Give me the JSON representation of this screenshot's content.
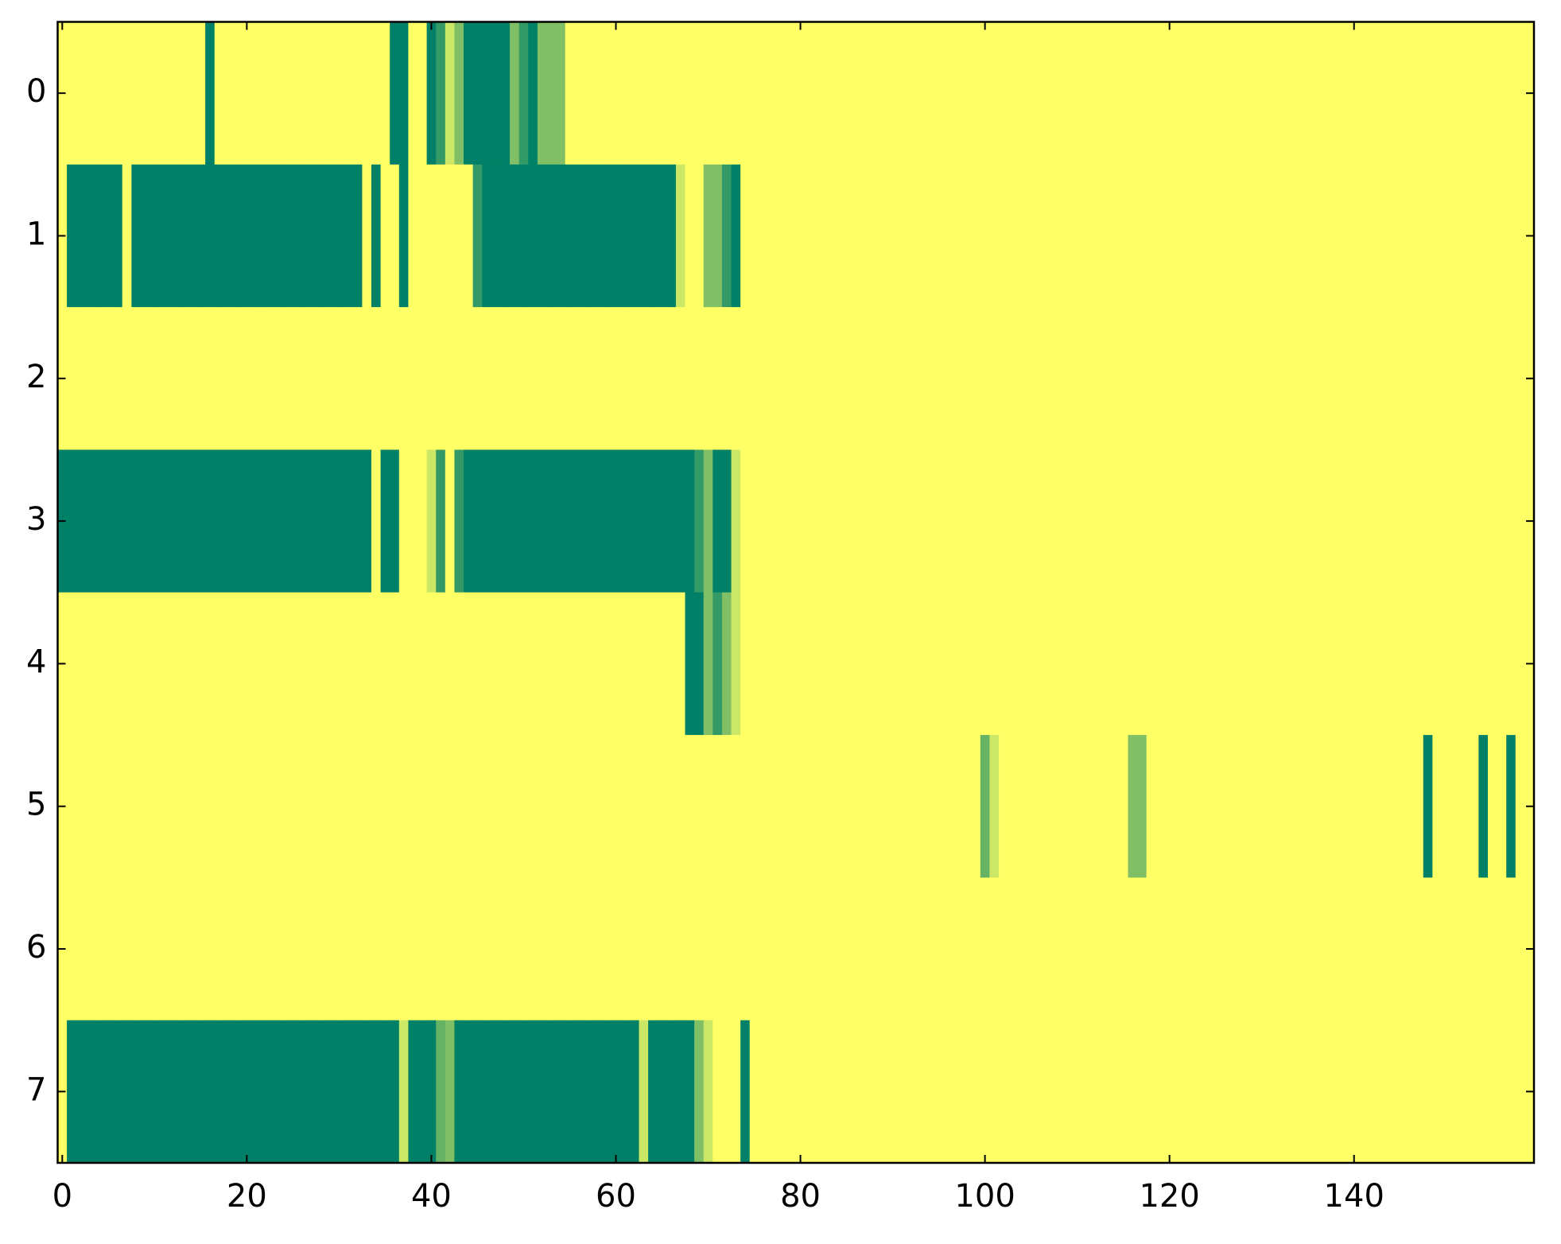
{
  "chart_data": {
    "type": "heatmap",
    "colormap": "summer",
    "clim": [
      0,
      1
    ],
    "xlim": [
      -0.5,
      159.5
    ],
    "ylim": [
      7.5,
      -0.5
    ],
    "xticks": [
      0,
      20,
      40,
      60,
      80,
      100,
      120,
      140
    ],
    "yticks": [
      0,
      1,
      2,
      3,
      4,
      5,
      6,
      7
    ],
    "values": [
      [
        1,
        1,
        1,
        1,
        1,
        1,
        1,
        1,
        1,
        1,
        1,
        1,
        1,
        1,
        1,
        1,
        0,
        1,
        1,
        1,
        1,
        1,
        1,
        1,
        1,
        1,
        1,
        1,
        1,
        1,
        1,
        1,
        1,
        1,
        1,
        1,
        0,
        0,
        1,
        1,
        0,
        0.2,
        0.8,
        0.5,
        0,
        0,
        0,
        0,
        0,
        0.5,
        0.2,
        0,
        0.5,
        0.5,
        0.5,
        1,
        1,
        1,
        1,
        1,
        1,
        1,
        1,
        1,
        1,
        1,
        1,
        1,
        1,
        1,
        1,
        1,
        1,
        1,
        1,
        1,
        1,
        1,
        1,
        1,
        1,
        1,
        1,
        1,
        1,
        1,
        1,
        1,
        1,
        1,
        1,
        1,
        1,
        1,
        1,
        1,
        1,
        1,
        1,
        1,
        1,
        1,
        1,
        1,
        1,
        1,
        1,
        1,
        1,
        1,
        1,
        1,
        1,
        1,
        1,
        1,
        1,
        1,
        1,
        1,
        1,
        1,
        1,
        1,
        1,
        1,
        1,
        1,
        1,
        1,
        1,
        1,
        1,
        1,
        1,
        1,
        1,
        1,
        1,
        1,
        1,
        1,
        1,
        1,
        1,
        1,
        1,
        1,
        1,
        1,
        1,
        1,
        1,
        1,
        1,
        1,
        1,
        1,
        1,
        1
      ],
      [
        1,
        0,
        0,
        0,
        0,
        0,
        0,
        1,
        0,
        0,
        0,
        0,
        0,
        0,
        0,
        0,
        0,
        0,
        0,
        0,
        0,
        0,
        0,
        0,
        0,
        0,
        0,
        0,
        0,
        0,
        0,
        0,
        0,
        1,
        0,
        1,
        1,
        0,
        1,
        1,
        1,
        1,
        1,
        1,
        1,
        0.2,
        0,
        0,
        0,
        0,
        0,
        0,
        0,
        0,
        0,
        0,
        0,
        0,
        0,
        0,
        0,
        0,
        0,
        0,
        0,
        0,
        0,
        0.8,
        1,
        1,
        0.5,
        0.5,
        0.2,
        0,
        1,
        1,
        1,
        1,
        1,
        1,
        1,
        1,
        1,
        1,
        1,
        1,
        1,
        1,
        1,
        1,
        1,
        1,
        1,
        1,
        1,
        1,
        1,
        1,
        1,
        1,
        1,
        1,
        1,
        1,
        1,
        1,
        1,
        1,
        1,
        1,
        1,
        1,
        1,
        1,
        1,
        1,
        1,
        1,
        1,
        1,
        1,
        1,
        1,
        1,
        1,
        1,
        1,
        1,
        1,
        1,
        1,
        1,
        1,
        1,
        1,
        1,
        1,
        1,
        1,
        1,
        1,
        1,
        1,
        1,
        1,
        1,
        1,
        1,
        1,
        1,
        1,
        1,
        1,
        1,
        1,
        1,
        1,
        1,
        1,
        1
      ],
      [
        1,
        1,
        1,
        1,
        1,
        1,
        1,
        1,
        1,
        1,
        1,
        1,
        1,
        1,
        1,
        1,
        1,
        1,
        1,
        1,
        1,
        1,
        1,
        1,
        1,
        1,
        1,
        1,
        1,
        1,
        1,
        1,
        1,
        1,
        1,
        1,
        1,
        1,
        1,
        1,
        1,
        1,
        1,
        1,
        1,
        1,
        1,
        1,
        1,
        1,
        1,
        1,
        1,
        1,
        1,
        1,
        1,
        1,
        1,
        1,
        1,
        1,
        1,
        1,
        1,
        1,
        1,
        1,
        1,
        1,
        1,
        1,
        1,
        1,
        1,
        1,
        1,
        1,
        1,
        1,
        1,
        1,
        1,
        1,
        1,
        1,
        1,
        1,
        1,
        1,
        1,
        1,
        1,
        1,
        1,
        1,
        1,
        1,
        1,
        1,
        1,
        1,
        1,
        1,
        1,
        1,
        1,
        1,
        1,
        1,
        1,
        1,
        1,
        1,
        1,
        1,
        1,
        1,
        1,
        1,
        1,
        1,
        1,
        1,
        1,
        1,
        1,
        1,
        1,
        1,
        1,
        1,
        1,
        1,
        1,
        1,
        1,
        1,
        1,
        1,
        1,
        1,
        1,
        1,
        1,
        1,
        1,
        1,
        1,
        1,
        1,
        1,
        1,
        1,
        1,
        1,
        1,
        1,
        1,
        1
      ],
      [
        0,
        0,
        0,
        0,
        0,
        0,
        0,
        0,
        0,
        0,
        0,
        0,
        0,
        0,
        0,
        0,
        0,
        0,
        0,
        0,
        0,
        0,
        0,
        0,
        0,
        0,
        0,
        0,
        0,
        0,
        0,
        0,
        0,
        0,
        1,
        0,
        0,
        1,
        1,
        1,
        0.8,
        0.2,
        1,
        0.2,
        0,
        0,
        0,
        0,
        0,
        0,
        0,
        0,
        0,
        0,
        0,
        0,
        0,
        0,
        0,
        0,
        0,
        0,
        0,
        0,
        0,
        0,
        0,
        0,
        0,
        0.2,
        0.5,
        0,
        0,
        0.8,
        1,
        1,
        1,
        1,
        1,
        1,
        1,
        1,
        1,
        1,
        1,
        1,
        1,
        1,
        1,
        1,
        1,
        1,
        1,
        1,
        1,
        1,
        1,
        1,
        1,
        1,
        1,
        1,
        1,
        1,
        1,
        1,
        1,
        1,
        1,
        1,
        1,
        1,
        1,
        1,
        1,
        1,
        1,
        1,
        1,
        1,
        1,
        1,
        1,
        1,
        1,
        1,
        1,
        1,
        1,
        1,
        1,
        1,
        1,
        1,
        1,
        1,
        1,
        1,
        1,
        1,
        1,
        1,
        1,
        1,
        1,
        1,
        1,
        1,
        1,
        1,
        1,
        1,
        1,
        1,
        1,
        1,
        1,
        1,
        1,
        1
      ],
      [
        1,
        1,
        1,
        1,
        1,
        1,
        1,
        1,
        1,
        1,
        1,
        1,
        1,
        1,
        1,
        1,
        1,
        1,
        1,
        1,
        1,
        1,
        1,
        1,
        1,
        1,
        1,
        1,
        1,
        1,
        1,
        1,
        1,
        1,
        1,
        1,
        1,
        1,
        1,
        1,
        1,
        1,
        1,
        1,
        1,
        1,
        1,
        1,
        1,
        1,
        1,
        1,
        1,
        1,
        1,
        1,
        1,
        1,
        1,
        1,
        1,
        1,
        1,
        1,
        1,
        1,
        1,
        1,
        0,
        0,
        0.5,
        0.2,
        0.5,
        0.8,
        1,
        1,
        1,
        1,
        1,
        1,
        1,
        1,
        1,
        1,
        1,
        1,
        1,
        1,
        1,
        1,
        1,
        1,
        1,
        1,
        1,
        1,
        1,
        1,
        1,
        1,
        1,
        1,
        1,
        1,
        1,
        1,
        1,
        1,
        1,
        1,
        1,
        1,
        1,
        1,
        1,
        1,
        1,
        1,
        1,
        1,
        1,
        1,
        1,
        1,
        1,
        1,
        1,
        1,
        1,
        1,
        1,
        1,
        1,
        1,
        1,
        1,
        1,
        1,
        1,
        1,
        1,
        1,
        1,
        1,
        1,
        1,
        1,
        1,
        1,
        1,
        1,
        1,
        1,
        1,
        1,
        1,
        1,
        1,
        1,
        1
      ],
      [
        1,
        1,
        1,
        1,
        1,
        1,
        1,
        1,
        1,
        1,
        1,
        1,
        1,
        1,
        1,
        1,
        1,
        1,
        1,
        1,
        1,
        1,
        1,
        1,
        1,
        1,
        1,
        1,
        1,
        1,
        1,
        1,
        1,
        1,
        1,
        1,
        1,
        1,
        1,
        1,
        1,
        1,
        1,
        1,
        1,
        1,
        1,
        1,
        1,
        1,
        1,
        1,
        1,
        1,
        1,
        1,
        1,
        1,
        1,
        1,
        1,
        1,
        1,
        1,
        1,
        1,
        1,
        1,
        1,
        1,
        1,
        1,
        1,
        1,
        1,
        1,
        1,
        1,
        1,
        1,
        1,
        1,
        1,
        1,
        1,
        1,
        1,
        1,
        1,
        1,
        1,
        1,
        1,
        1,
        1,
        1,
        1,
        1,
        1,
        1,
        0.4,
        0.8,
        1,
        1,
        1,
        1,
        1,
        1,
        1,
        1,
        1,
        1,
        1,
        1,
        1,
        1,
        0.5,
        0.5,
        1,
        1,
        1,
        1,
        1,
        1,
        1,
        1,
        1,
        1,
        1,
        1,
        1,
        1,
        1,
        1,
        1,
        1,
        1,
        1,
        1,
        1,
        1,
        1,
        1,
        1,
        1,
        1,
        1,
        1,
        0,
        1,
        1,
        1,
        1,
        1,
        0,
        1,
        1,
        0,
        1,
        1
      ],
      [
        1,
        1,
        1,
        1,
        1,
        1,
        1,
        1,
        1,
        1,
        1,
        1,
        1,
        1,
        1,
        1,
        1,
        1,
        1,
        1,
        1,
        1,
        1,
        1,
        1,
        1,
        1,
        1,
        1,
        1,
        1,
        1,
        1,
        1,
        1,
        1,
        1,
        1,
        1,
        1,
        1,
        1,
        1,
        1,
        1,
        1,
        1,
        1,
        1,
        1,
        1,
        1,
        1,
        1,
        1,
        1,
        1,
        1,
        1,
        1,
        1,
        1,
        1,
        1,
        1,
        1,
        1,
        1,
        1,
        1,
        1,
        1,
        1,
        1,
        1,
        1,
        1,
        1,
        1,
        1,
        1,
        1,
        1,
        1,
        1,
        1,
        1,
        1,
        1,
        1,
        1,
        1,
        1,
        1,
        1,
        1,
        1,
        1,
        1,
        1,
        1,
        1,
        1,
        1,
        1,
        1,
        1,
        1,
        1,
        1,
        1,
        1,
        1,
        1,
        1,
        1,
        1,
        1,
        1,
        1,
        1,
        1,
        1,
        1,
        1,
        1,
        1,
        1,
        1,
        1,
        1,
        1,
        1,
        1,
        1,
        1,
        1,
        1,
        1,
        1,
        1,
        1,
        1,
        1,
        1,
        1,
        1,
        1,
        1,
        1,
        1,
        1,
        1,
        1,
        1,
        1,
        1,
        1,
        1,
        1
      ],
      [
        1,
        0,
        0,
        0,
        0,
        0,
        0,
        0,
        0,
        0,
        0,
        0,
        0,
        0,
        0,
        0,
        0,
        0,
        0,
        0,
        0,
        0,
        0,
        0,
        0,
        0,
        0,
        0,
        0,
        0,
        0,
        0,
        0,
        0,
        0,
        0,
        0,
        0.8,
        0,
        0,
        0,
        0.4,
        0.5,
        0,
        0,
        0,
        0,
        0,
        0,
        0,
        0,
        0,
        0,
        0,
        0,
        0,
        0,
        0,
        0,
        0,
        0,
        0,
        0,
        0.8,
        0,
        0,
        0,
        0,
        0,
        0.5,
        0.8,
        1,
        1,
        1,
        0,
        1,
        1,
        1,
        1,
        1,
        1,
        1,
        1,
        1,
        1,
        1,
        1,
        1,
        1,
        1,
        1,
        1,
        1,
        1,
        1,
        1,
        1,
        1,
        1,
        1,
        1,
        1,
        1,
        1,
        1,
        1,
        1,
        1,
        1,
        1,
        1,
        1,
        1,
        1,
        1,
        1,
        1,
        1,
        1,
        1,
        1,
        1,
        1,
        1,
        1,
        1,
        1,
        1,
        1,
        1,
        1,
        1,
        1,
        1,
        1,
        1,
        1,
        1,
        1,
        1,
        1,
        1,
        1,
        1,
        1,
        1,
        1,
        1,
        1,
        1,
        1,
        1,
        1,
        1,
        1,
        1,
        1,
        1,
        1,
        1
      ]
    ]
  }
}
